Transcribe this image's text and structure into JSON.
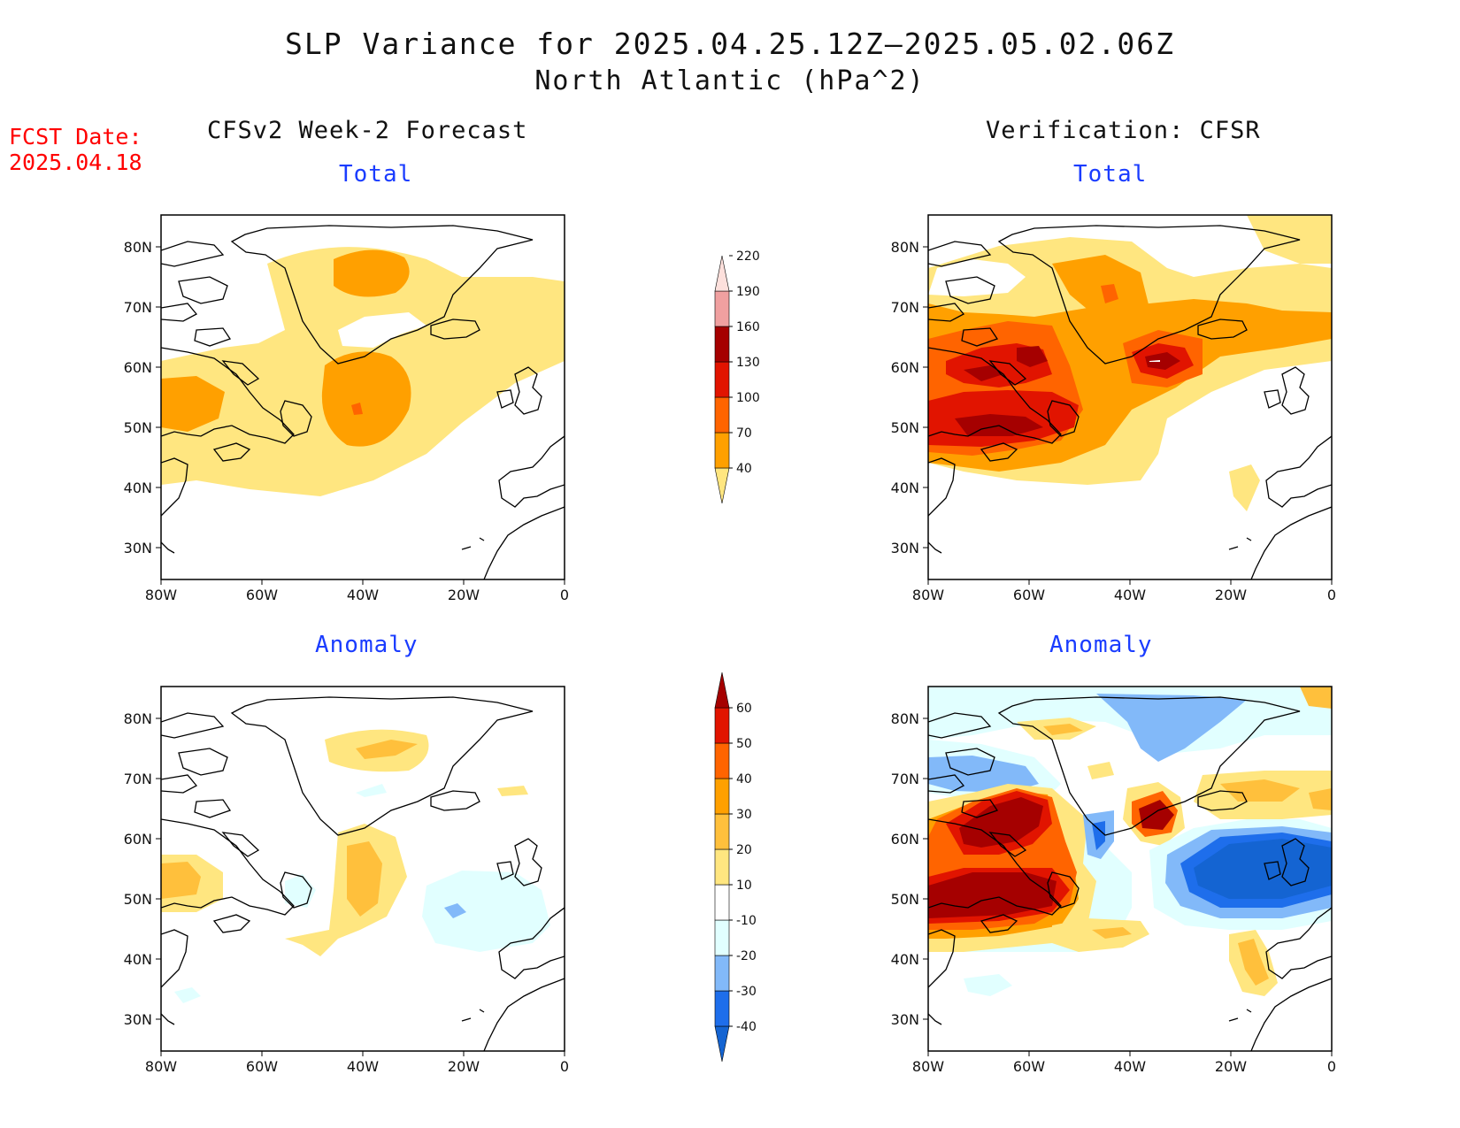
{
  "header": {
    "title_line1": "SLP Variance for 2025.04.25.12Z–2025.05.02.06Z",
    "title_line2": "North Atlantic (hPa^2)",
    "fcst_label": "FCST Date:",
    "fcst_date": "2025.04.18"
  },
  "columns": {
    "left_title": "CFSv2 Week-2 Forecast",
    "right_title": "Verification: CFSR"
  },
  "panels": {
    "top_left_title": "Total",
    "top_right_title": "Total",
    "bottom_left_title": "Anomaly",
    "bottom_right_title": "Anomaly"
  },
  "axes": {
    "lat_ticks": [
      "80N",
      "70N",
      "60N",
      "50N",
      "40N",
      "30N"
    ],
    "lon_ticks": [
      "80W",
      "60W",
      "40W",
      "20W",
      "0"
    ]
  },
  "colorbars": {
    "total": {
      "levels": [
        "40",
        "70",
        "100",
        "130",
        "160",
        "190",
        "220"
      ],
      "colors": [
        "#ffe680",
        "#ffa000",
        "#ff6400",
        "#e11400",
        "#a50000",
        "#f0a0a0",
        "#fde0dc"
      ]
    },
    "anomaly": {
      "levels": [
        "-40",
        "-30",
        "-20",
        "-10",
        "10",
        "20",
        "30",
        "40",
        "50",
        "60"
      ],
      "colors": [
        "#1464d2",
        "#1e6eeb",
        "#82b9f9",
        "#e1ffff",
        "#ffffff",
        "#ffe680",
        "#ffc03c",
        "#ffa000",
        "#ff6400",
        "#e11400",
        "#a50000"
      ]
    }
  },
  "map": {
    "projection": "lat-lon",
    "lon_range": [
      -80,
      0
    ],
    "lat_range": [
      25,
      85
    ]
  }
}
